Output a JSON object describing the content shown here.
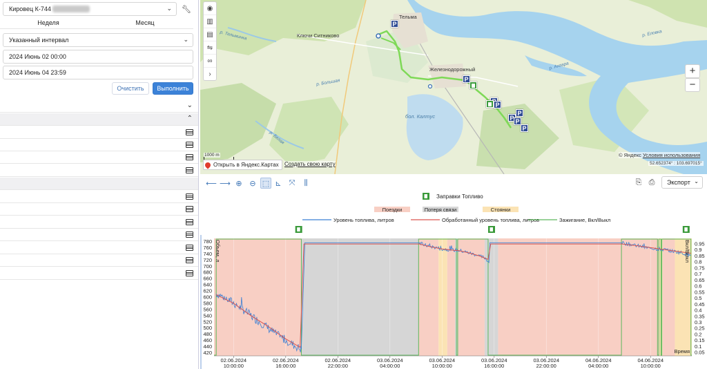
{
  "left_panel": {
    "object_select": {
      "value": "Кировец К-744"
    },
    "tabs": [
      "Неделя",
      "Месяц"
    ],
    "interval_select": {
      "value": "Указанный интервал"
    },
    "date_from": "2024 Июнь 02 00:00",
    "date_to": "2024 Июнь 04 23:59",
    "clear_label": "Очистить",
    "run_label": "Выполнить"
  },
  "map": {
    "labels": {
      "telma": "Тельма",
      "klyuchi": "Ключи Ситниково",
      "zheleznodorozhny": "Железнодорожный",
      "kaltus": "бол. Калтус",
      "river_telminka": "р. Тельминка",
      "river_angara": "р. Ангара",
      "river_belaya": "р. Белая",
      "river_bolshaya": "р. Большая",
      "river_elovka": "р. Еловка"
    },
    "copyright_prefix": "© Яндекс",
    "copyright_link": "Условия использования",
    "coords": "52.652374° : 103.697015°",
    "scale_label": "1000 m",
    "open_yandex": "Открыть в Яндекс.Картах",
    "create_map": "Создать свою карту",
    "zoom_in": "+",
    "zoom_out": "−",
    "colors": {
      "track": "#7ed957",
      "parking": "#2f4b93",
      "fuel": "#3a9a3a"
    }
  },
  "chart_toolbar": {
    "export_label": "Экспорт"
  },
  "chart_data": {
    "type": "line",
    "legend_top": "Заправки Топливо",
    "legend_bands": [
      "Поездки",
      "Потеря связи",
      "Стоянки"
    ],
    "legend_series": [
      "Уровень топлива, литров",
      "Обработанный уровень топлива, литров",
      "Зажигание, Вкл/Выкл"
    ],
    "y_left_label": "Объем, л",
    "y_right_label": "Вкл/Выкл",
    "x_axis_label": "Время",
    "y_left_ticks": [
      780,
      760,
      740,
      720,
      700,
      680,
      660,
      640,
      620,
      600,
      580,
      560,
      540,
      520,
      500,
      480,
      460,
      440,
      420
    ],
    "y_right_ticks": [
      "0.95",
      "0.9",
      "0.85",
      "0.8",
      "0.75",
      "0.7",
      "0.65",
      "0.6",
      "0.55",
      "0.5",
      "0.45",
      "0.4",
      "0.35",
      "0.3",
      "0.25",
      "0.2",
      "0.15",
      "0.1",
      "0.05"
    ],
    "ylim": [
      410,
      790
    ],
    "xlim_hours": [
      5.5,
      115.5
    ],
    "x_ticks": [
      {
        "h": 10,
        "date": "02.06.2024",
        "time": "10:00:00"
      },
      {
        "h": 22,
        "date": "02.06.2024",
        "time": "16:00:00"
      },
      {
        "h": 34,
        "date": "02.06.2024",
        "time": "22:00:00"
      },
      {
        "h": 46,
        "date": "03.06.2024",
        "time": "04:00:00"
      },
      {
        "h": 58,
        "date": "03.06.2024",
        "time": "10:00:00"
      },
      {
        "h": 70,
        "date": "03.06.2024",
        "time": "16:00:00"
      },
      {
        "h": 82,
        "date": "03.06.2024",
        "time": "22:00:00"
      },
      {
        "h": 94,
        "date": "04.06.2024",
        "time": "04:00:00"
      },
      {
        "h": 106,
        "date": "04.06.2024",
        "time": "10:00:00"
      }
    ],
    "bands": [
      {
        "type": "trip",
        "from": 5.5,
        "to": 25.6
      },
      {
        "type": "lost",
        "from": 25.6,
        "to": 52.6
      },
      {
        "type": "trip",
        "from": 52.6,
        "to": 57.2
      },
      {
        "type": "stop",
        "from": 57.2,
        "to": 59.2
      },
      {
        "type": "trip",
        "from": 59.2,
        "to": 61.0
      },
      {
        "type": "lost",
        "from": 61.0,
        "to": 61.6
      },
      {
        "type": "trip",
        "from": 61.6,
        "to": 67.8
      },
      {
        "type": "lost",
        "from": 67.8,
        "to": 70.9
      },
      {
        "type": "trip",
        "from": 70.9,
        "to": 108.0
      },
      {
        "type": "stop",
        "from": 108.0,
        "to": 108.8
      },
      {
        "type": "trip",
        "from": 108.8,
        "to": 111.6
      },
      {
        "type": "stop",
        "from": 111.6,
        "to": 115.5
      }
    ],
    "ignition_on": [
      [
        6.0,
        25.6
      ],
      [
        52.6,
        61.3
      ],
      [
        61.6,
        68.6
      ],
      [
        99.3,
        107.6
      ],
      [
        107.9,
        108.4
      ],
      [
        108.6,
        115.3
      ]
    ],
    "fuel_marks_h": [
      25.0,
      69.4,
      114.2
    ],
    "fuel_raw": [
      {
        "h": 6.0,
        "v": 612
      },
      {
        "h": 9.0,
        "v": 590
      },
      {
        "h": 12.0,
        "v": 562
      },
      {
        "h": 14.0,
        "v": 540
      },
      {
        "h": 17.0,
        "v": 510
      },
      {
        "h": 20.0,
        "v": 478
      },
      {
        "h": 23.0,
        "v": 452
      },
      {
        "h": 25.4,
        "v": 432
      },
      {
        "h": 25.6,
        "v": 432
      },
      {
        "h": 26.4,
        "v": 776
      },
      {
        "h": 52.6,
        "v": 776
      },
      {
        "h": 54.0,
        "v": 768
      },
      {
        "h": 56.0,
        "v": 762
      },
      {
        "h": 58.0,
        "v": 756
      },
      {
        "h": 61.0,
        "v": 752
      },
      {
        "h": 62.0,
        "v": 751
      },
      {
        "h": 64.0,
        "v": 744
      },
      {
        "h": 66.0,
        "v": 736
      },
      {
        "h": 68.0,
        "v": 726
      },
      {
        "h": 68.8,
        "v": 712
      },
      {
        "h": 69.0,
        "v": 776
      },
      {
        "h": 99.3,
        "v": 776
      },
      {
        "h": 101.0,
        "v": 772
      },
      {
        "h": 103.0,
        "v": 766
      },
      {
        "h": 105.0,
        "v": 760
      },
      {
        "h": 107.0,
        "v": 757
      },
      {
        "h": 109.0,
        "v": 754
      },
      {
        "h": 111.0,
        "v": 749
      },
      {
        "h": 113.0,
        "v": 744
      },
      {
        "h": 115.3,
        "v": 735
      }
    ],
    "fuel_processed": [
      {
        "h": 6.0,
        "v": 608
      },
      {
        "h": 10.0,
        "v": 580
      },
      {
        "h": 14.0,
        "v": 540
      },
      {
        "h": 18.0,
        "v": 505
      },
      {
        "h": 22.0,
        "v": 465
      },
      {
        "h": 25.3,
        "v": 438
      },
      {
        "h": 26.2,
        "v": 772
      },
      {
        "h": 52.8,
        "v": 772
      },
      {
        "h": 55.0,
        "v": 764
      },
      {
        "h": 58.0,
        "v": 756
      },
      {
        "h": 61.0,
        "v": 751
      },
      {
        "h": 61.6,
        "v": 751
      },
      {
        "h": 64.0,
        "v": 744
      },
      {
        "h": 66.5,
        "v": 734
      },
      {
        "h": 68.6,
        "v": 722
      },
      {
        "h": 69.2,
        "v": 772
      },
      {
        "h": 99.5,
        "v": 772
      },
      {
        "h": 103.0,
        "v": 766
      },
      {
        "h": 107.0,
        "v": 758
      },
      {
        "h": 111.0,
        "v": 750
      },
      {
        "h": 115.3,
        "v": 742
      }
    ]
  }
}
